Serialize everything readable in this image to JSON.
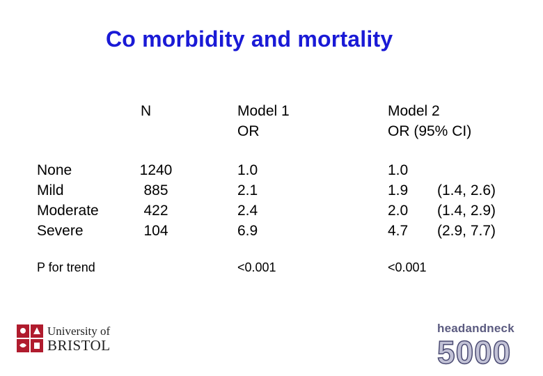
{
  "title": "Co morbidity and mortality",
  "headers": {
    "n": "N",
    "model1": [
      "Model 1",
      "OR"
    ],
    "model2": [
      "Model 2",
      "OR (95% CI)"
    ]
  },
  "rows": {
    "labels": [
      "None",
      "Mild",
      "Moderate",
      "Severe"
    ],
    "n": [
      "1240",
      "885",
      "422",
      "104"
    ],
    "model1_or": [
      "1.0",
      "2.1",
      "2.4",
      "6.9"
    ],
    "model2_or": [
      "1.0",
      "1.9",
      "2.0",
      "4.7"
    ],
    "model2_ci": [
      "(1.4, 2.6)",
      "(1.4, 2.9)",
      "(2.9, 7.7)"
    ]
  },
  "trend": {
    "label": "P for trend",
    "model1": "<0.001",
    "model2": "<0.001"
  },
  "logos": {
    "bristol_line1": "University of",
    "bristol_line2": "BRISTOL",
    "hn_line1": "headandneck",
    "hn_line2": "5000"
  }
}
